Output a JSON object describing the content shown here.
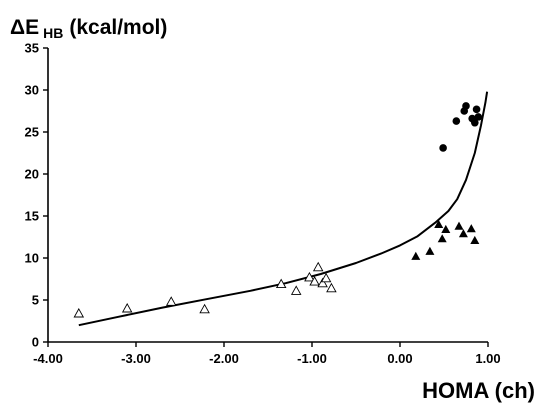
{
  "chart_data": {
    "type": "scatter",
    "title": "",
    "ylabel": {
      "main": "ΔE",
      "sub": "HB",
      "unit": "(kcal/mol)"
    },
    "xlabel": "HOMA (ch)",
    "xlim": [
      -4.0,
      1.0
    ],
    "ylim": [
      0,
      35
    ],
    "xticks": [
      -4.0,
      -3.0,
      -2.0,
      -1.0,
      0.0,
      1.0
    ],
    "xtick_labels": [
      "-4.00",
      "-3.00",
      "-2.00",
      "-1.00",
      "0.00",
      "1.00"
    ],
    "yticks": [
      0,
      5,
      10,
      15,
      20,
      25,
      30,
      35
    ],
    "ytick_labels": [
      "0",
      "5",
      "10",
      "15",
      "20",
      "25",
      "30",
      "35"
    ],
    "grid": false,
    "legend": "none",
    "series": [
      {
        "marker": "open-triangle",
        "color": "#000000",
        "points": [
          [
            -3.65,
            3.4
          ],
          [
            -3.1,
            4.0
          ],
          [
            -2.6,
            4.8
          ],
          [
            -2.22,
            3.9
          ],
          [
            -1.35,
            6.9
          ],
          [
            -1.18,
            6.1
          ],
          [
            -1.03,
            7.7
          ],
          [
            -0.97,
            7.2
          ],
          [
            -0.93,
            8.9
          ],
          [
            -0.88,
            7.0
          ],
          [
            -0.84,
            7.6
          ],
          [
            -0.78,
            6.4
          ]
        ]
      },
      {
        "marker": "filled-triangle",
        "color": "#000000",
        "points": [
          [
            0.18,
            10.2
          ],
          [
            0.34,
            10.8
          ],
          [
            0.44,
            14.0
          ],
          [
            0.48,
            12.3
          ],
          [
            0.52,
            13.4
          ],
          [
            0.67,
            13.8
          ],
          [
            0.72,
            12.9
          ],
          [
            0.81,
            13.5
          ],
          [
            0.85,
            12.1
          ]
        ]
      },
      {
        "marker": "filled-circle",
        "color": "#000000",
        "points": [
          [
            0.49,
            23.1
          ],
          [
            0.64,
            26.3
          ],
          [
            0.73,
            27.5
          ],
          [
            0.75,
            28.1
          ],
          [
            0.82,
            26.6
          ],
          [
            0.85,
            26.1
          ],
          [
            0.87,
            27.7
          ],
          [
            0.89,
            26.8
          ]
        ]
      }
    ],
    "fit_curve": {
      "style": "solid",
      "color": "#000000",
      "points": [
        [
          -3.65,
          2.0
        ],
        [
          -3.2,
          3.0
        ],
        [
          -2.7,
          4.1
        ],
        [
          -2.2,
          5.1
        ],
        [
          -1.7,
          6.1
        ],
        [
          -1.3,
          7.0
        ],
        [
          -0.9,
          8.1
        ],
        [
          -0.5,
          9.4
        ],
        [
          -0.2,
          10.6
        ],
        [
          0.0,
          11.5
        ],
        [
          0.2,
          12.6
        ],
        [
          0.4,
          14.2
        ],
        [
          0.55,
          15.6
        ],
        [
          0.65,
          17.0
        ],
        [
          0.75,
          19.3
        ],
        [
          0.85,
          22.5
        ],
        [
          0.92,
          25.8
        ],
        [
          0.97,
          28.5
        ],
        [
          0.99,
          29.8
        ]
      ]
    }
  }
}
